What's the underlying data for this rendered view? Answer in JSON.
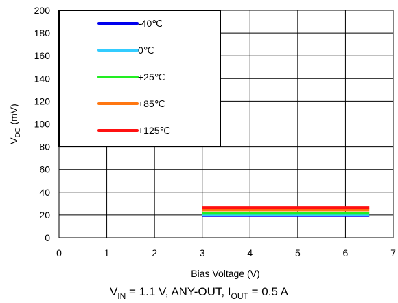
{
  "chart_data": {
    "type": "line",
    "title": "",
    "xlabel": "Bias Voltage (V)",
    "ylabel": {
      "main": "V",
      "sub": "DO",
      "tail": " (mV)"
    },
    "xlim": [
      0,
      7
    ],
    "ylim": [
      0,
      200
    ],
    "xticks": [
      0,
      1,
      2,
      3,
      4,
      5,
      6,
      7
    ],
    "yticks": [
      0,
      20,
      40,
      60,
      80,
      100,
      120,
      140,
      160,
      180,
      200
    ],
    "grid": true,
    "legend_position": "top-left",
    "series": [
      {
        "name": "-40℃",
        "color": "#0000ee",
        "x": [
          3,
          6.5
        ],
        "y": [
          19.5,
          19.5
        ]
      },
      {
        "name": "0℃",
        "color": "#33ccff",
        "x": [
          3,
          6.5
        ],
        "y": [
          20,
          20
        ]
      },
      {
        "name": "+25℃",
        "color": "#22ee22",
        "x": [
          3,
          6.5
        ],
        "y": [
          21.5,
          21.5
        ]
      },
      {
        "name": "+85℃",
        "color": "#ff7711",
        "x": [
          3,
          6.5
        ],
        "y": [
          24.5,
          24.5
        ]
      },
      {
        "name": "+125℃",
        "color": "#ff1111",
        "x": [
          3,
          6.5
        ],
        "y": [
          26.5,
          26.5
        ]
      }
    ]
  },
  "caption": {
    "parts": [
      {
        "text": "V",
        "sub": false
      },
      {
        "text": "IN",
        "sub": true
      },
      {
        "text": " = 1.1 V, ANY-OUT, I",
        "sub": false
      },
      {
        "text": "OUT",
        "sub": true
      },
      {
        "text": " = 0.5 A",
        "sub": false
      }
    ]
  }
}
